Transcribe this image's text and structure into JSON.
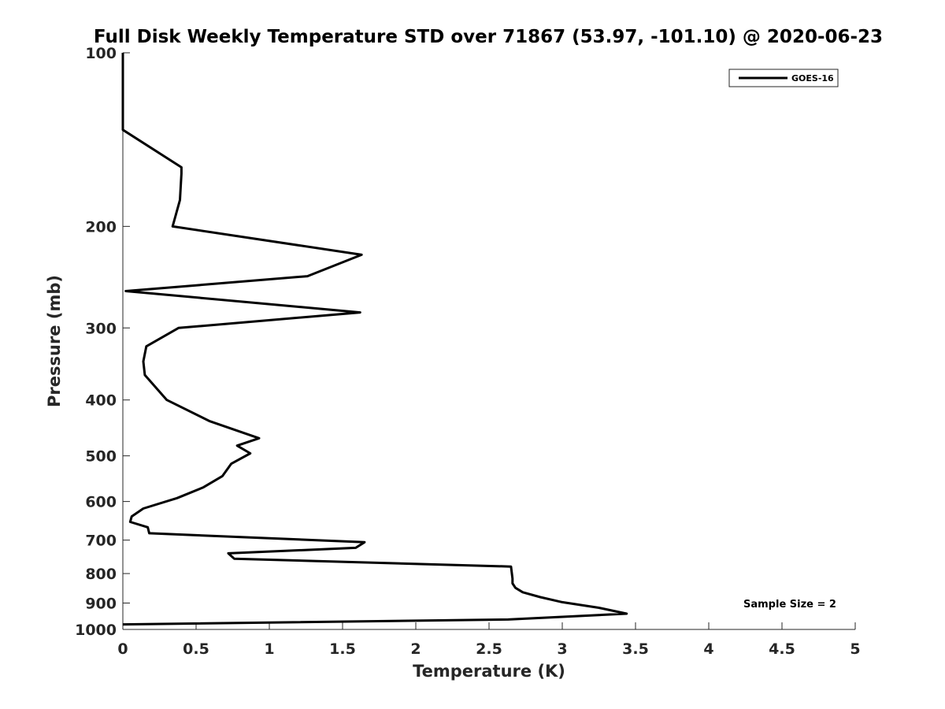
{
  "chart_data": {
    "type": "line",
    "title": "Full Disk Weekly Temperature STD over 71867 (53.97, -101.10) @ 2020-06-23",
    "xlabel": "Temperature (K)",
    "ylabel": "Pressure (mb)",
    "xlim": [
      0,
      5
    ],
    "ylim": [
      1000,
      100
    ],
    "yscale": "log",
    "y_reversed": true,
    "x_ticks": [
      "0",
      "0.5",
      "1",
      "1.5",
      "2",
      "2.5",
      "3",
      "3.5",
      "4",
      "4.5",
      "5"
    ],
    "y_ticks": [
      "100",
      "200",
      "300",
      "400",
      "500",
      "600",
      "700",
      "800",
      "900",
      "1000"
    ],
    "grid": false,
    "legend": {
      "position": "top-right",
      "entries": [
        "GOES-16"
      ]
    },
    "annotation": "Sample Size = 2",
    "series": [
      {
        "name": "GOES-16",
        "color": "#000000",
        "x": [
          0,
          0,
          0.4,
          0.4,
          0.39,
          0.34,
          1.63,
          1.26,
          0.02,
          1.62,
          0.38,
          0.16,
          0.14,
          0.15,
          0.3,
          0.59,
          0.93,
          0.78,
          0.87,
          0.74,
          0.68,
          0.55,
          0.37,
          0.14,
          0.06,
          0.05,
          0.17,
          0.18,
          1.65,
          1.59,
          0.72,
          0.76,
          2.65,
          2.66,
          2.66,
          2.68,
          2.73,
          2.85,
          3.0,
          3.25,
          3.44,
          2.63,
          0
        ],
        "y": [
          100,
          136,
          158,
          162,
          180,
          200,
          224,
          244,
          259,
          282,
          300,
          323,
          343,
          362,
          400,
          435,
          466,
          480,
          495,
          516,
          542,
          567,
          592,
          617,
          637,
          651,
          665,
          681,
          706,
          722,
          738,
          754,
          778,
          816,
          832,
          847,
          862,
          879,
          897,
          917,
          939,
          961,
          980
        ]
      }
    ]
  }
}
